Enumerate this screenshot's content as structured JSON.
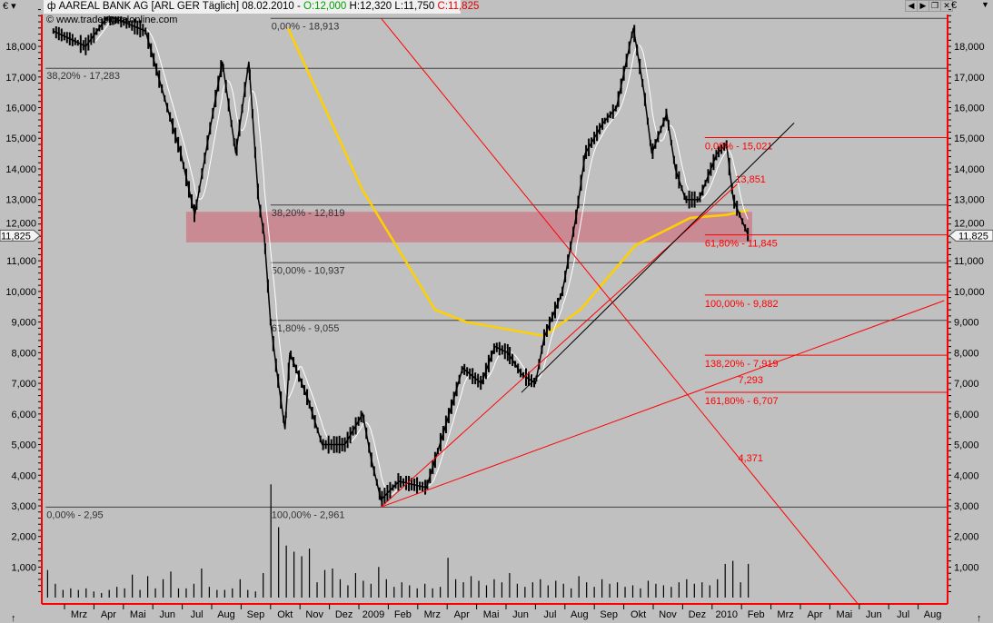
{
  "window": {
    "currency_left": "€",
    "currency_right": "€",
    "title_prefix": "AAREAL BANK AG [ARL GER  Täglich] 08.02.2010 - ",
    "open": "O:12,000",
    "high": "H:12,320",
    "low": "L:11,750",
    "close": "C:11,825",
    "copyright": "© www.tradesignalonline.com",
    "buttons": [
      "back-icon",
      "forward-icon",
      "restore-icon",
      "close-icon"
    ],
    "last_price_label": "11,825",
    "colors": {
      "background": "#c0c0c0",
      "price": "#000000",
      "fast_ma": "#ffffff",
      "slow_ma": "#ffd000",
      "drawings": "#ff0000",
      "zone": "#c98a94",
      "axis": "#ff0000",
      "up_open": "#00a000",
      "close_red": "#e00000"
    }
  },
  "chart_data": {
    "type": "line",
    "subtype": "candlestick-daily",
    "title": "AAREAL BANK AG [ARL GER  Täglich]",
    "y_ticks": [
      {
        "v": 1,
        "label": "1,000"
      },
      {
        "v": 2,
        "label": "2,000"
      },
      {
        "v": 3,
        "label": "3,000"
      },
      {
        "v": 4,
        "label": "4,000"
      },
      {
        "v": 5,
        "label": "5,000"
      },
      {
        "v": 6,
        "label": "6,000"
      },
      {
        "v": 7,
        "label": "7,000"
      },
      {
        "v": 8,
        "label": "8,000"
      },
      {
        "v": 9,
        "label": "9,000"
      },
      {
        "v": 10,
        "label": "10,000"
      },
      {
        "v": 11,
        "label": "11,000"
      },
      {
        "v": 12,
        "label": "12,000"
      },
      {
        "v": 13,
        "label": "13,000"
      },
      {
        "v": 14,
        "label": "14,000"
      },
      {
        "v": 15,
        "label": "15,000"
      },
      {
        "v": 16,
        "label": "16,000"
      },
      {
        "v": 17,
        "label": "17,000"
      },
      {
        "v": 18,
        "label": "18,000"
      }
    ],
    "x_ticks": [
      "Mrz",
      "Apr",
      "Mai",
      "Jun",
      "Jul",
      "Aug",
      "Sep",
      "Okt",
      "Nov",
      "Dez",
      "2009",
      "Feb",
      "Mrz",
      "Apr",
      "Mai",
      "Jun",
      "Jul",
      "Aug",
      "Sep",
      "Okt",
      "Nov",
      "Dez",
      "2010",
      "Feb",
      "Mrz",
      "Apr",
      "Mai",
      "Jun",
      "Jul",
      "Aug"
    ],
    "x_range": [
      "2008-02-12",
      "2010-08-31"
    ],
    "ylim": [
      0,
      19.2
    ],
    "grid": false,
    "price": [
      [
        "2008-02-20",
        18.5
      ],
      [
        "2008-03-23",
        18.0
      ],
      [
        "2008-04-16",
        19.0
      ],
      [
        "2008-05-24",
        18.5
      ],
      [
        "2008-06-16",
        16.0
      ],
      [
        "2008-06-30",
        14.5
      ],
      [
        "2008-07-14",
        12.5
      ],
      [
        "2008-07-28",
        15.0
      ],
      [
        "2008-08-12",
        17.5
      ],
      [
        "2008-08-26",
        14.5
      ],
      [
        "2008-09-09",
        17.5
      ],
      [
        "2008-09-19",
        13.0
      ],
      [
        "2008-09-25",
        11.8
      ],
      [
        "2008-10-01",
        9.0
      ],
      [
        "2008-10-07",
        7.5
      ],
      [
        "2008-10-16",
        5.5
      ],
      [
        "2008-10-21",
        8.0
      ],
      [
        "2008-11-09",
        6.5
      ],
      [
        "2008-11-24",
        5.0
      ],
      [
        "2008-12-17",
        5.0
      ],
      [
        "2009-01-05",
        6.0
      ],
      [
        "2009-01-14",
        4.5
      ],
      [
        "2009-01-24",
        3.2
      ],
      [
        "2009-02-12",
        3.8
      ],
      [
        "2009-03-10",
        3.6
      ],
      [
        "2009-03-19",
        4.5
      ],
      [
        "2009-04-08",
        6.5
      ],
      [
        "2009-04-17",
        7.5
      ],
      [
        "2009-05-06",
        7.0
      ],
      [
        "2009-05-20",
        8.2
      ],
      [
        "2009-06-03",
        8.0
      ],
      [
        "2009-06-17",
        7.3
      ],
      [
        "2009-07-01",
        7.0
      ],
      [
        "2009-07-10",
        8.5
      ],
      [
        "2009-07-29",
        10.0
      ],
      [
        "2009-08-13",
        12.5
      ],
      [
        "2009-08-22",
        14.5
      ],
      [
        "2009-09-10",
        15.5
      ],
      [
        "2009-09-24",
        16.0
      ],
      [
        "2009-10-11",
        18.6
      ],
      [
        "2009-10-22",
        16.5
      ],
      [
        "2009-10-30",
        14.5
      ],
      [
        "2009-11-15",
        15.8
      ],
      [
        "2009-11-24",
        14.0
      ],
      [
        "2009-12-04",
        13.0
      ],
      [
        "2009-12-18",
        13.0
      ],
      [
        "2010-01-06",
        14.5
      ],
      [
        "2010-01-16",
        14.8
      ],
      [
        "2010-01-23",
        13.0
      ],
      [
        "2010-02-08",
        11.825
      ]
    ],
    "slow_ma": [
      [
        "2008-10-19",
        18.6
      ],
      [
        "2009-01-05",
        13.3
      ],
      [
        "2009-03-19",
        9.4
      ],
      [
        "2009-04-21",
        9.0
      ],
      [
        "2009-07-10",
        8.55
      ],
      [
        "2009-08-17",
        9.4
      ],
      [
        "2009-10-13",
        11.5
      ],
      [
        "2009-12-09",
        12.4
      ],
      [
        "2010-01-16",
        12.5
      ],
      [
        "2010-02-08",
        12.65
      ]
    ],
    "volume": [
      900,
      450,
      250,
      300,
      250,
      300,
      200,
      150,
      250,
      350,
      300,
      750,
      250,
      700,
      300,
      600,
      850,
      300,
      300,
      450,
      950,
      350,
      250,
      250,
      300,
      600,
      250,
      200,
      800,
      3700,
      2300,
      1700,
      1500,
      1350,
      1600,
      500,
      900,
      950,
      600,
      400,
      800,
      550,
      450,
      1000,
      600,
      350,
      500,
      400,
      300,
      450,
      300,
      350,
      1300,
      600,
      500,
      700,
      550,
      400,
      600,
      500,
      800,
      450,
      350,
      500,
      600,
      400,
      550,
      450,
      300,
      700,
      500,
      350,
      600,
      450,
      500,
      350,
      400,
      300,
      550,
      450,
      400,
      350,
      500,
      600,
      450,
      500,
      400,
      600,
      1100,
      1200,
      500,
      1100
    ],
    "volume_range": [
      "2008-02-14",
      "2010-02-08"
    ],
    "zone": {
      "from": [
        "2008-07-05",
        12.6
      ],
      "to": [
        "2010-02-12",
        11.6
      ]
    },
    "fib_levels_grey": [
      {
        "price": 18.913,
        "label": "0,00% - 18,913",
        "start": "2008-10-01",
        "label_side": "start"
      },
      {
        "price": 17.283,
        "label": "38,20% - 17,283",
        "start": "2008-02-12",
        "label_side": "start"
      },
      {
        "price": 12.819,
        "label": "38,20% - 12,819",
        "start": "2008-10-01",
        "label_side": "start"
      },
      {
        "price": 10.937,
        "label": "50,00% - 10,937",
        "start": "2008-10-01",
        "label_side": "start"
      },
      {
        "price": 9.055,
        "label": "61,80% - 9,055",
        "start": "2008-10-01",
        "label_side": "start"
      },
      {
        "price": 2.961,
        "label": "100,00% - 2,961",
        "start": "2008-02-12",
        "label_side": "start"
      }
    ],
    "extra_grey_label": {
      "price": 2.961,
      "label": "0,00% - 2,95",
      "date": "2008-02-12"
    },
    "extra_grey_label_2": {
      "price": 2.961,
      "label": "100,00% - 2,961",
      "date": "2008-10-01"
    },
    "fib_levels_red": [
      {
        "price": 15.021,
        "label": "0,00% - 15,021"
      },
      {
        "price": 11.845,
        "label": "61,80% - 11,845"
      },
      {
        "price": 9.882,
        "label": "100,00% - 9,882"
      },
      {
        "price": 7.919,
        "label": "138,20% - 7,919"
      },
      {
        "price": 6.707,
        "label": "161,80% - 6,707"
      }
    ],
    "fib_red_start": "2009-12-24",
    "trendlines": [
      {
        "color": "#ff0000",
        "from": [
          "2009-01-24",
          2.961
        ],
        "to": [
          "2010-01-27",
          13.5
        ]
      },
      {
        "color": "#ff0000",
        "from": [
          "2009-01-24",
          2.961
        ],
        "to": [
          "2010-08-28",
          9.7
        ]
      },
      {
        "color": "#000000",
        "from": [
          "2009-06-17",
          6.7
        ],
        "to": [
          "2010-03-25",
          15.5
        ]
      },
      {
        "color": "#ff0000",
        "from": [
          "2009-01-24",
          18.92
        ],
        "to": [
          "2010-05-30",
          -0.2
        ]
      }
    ],
    "annotations": [
      {
        "label": "13,851",
        "date": "2010-01-25",
        "price": 13.55
      },
      {
        "label": "7,293",
        "date": "2010-01-28",
        "price": 7.0
      },
      {
        "label": "4,371",
        "date": "2010-01-28",
        "price": 4.45
      }
    ]
  }
}
